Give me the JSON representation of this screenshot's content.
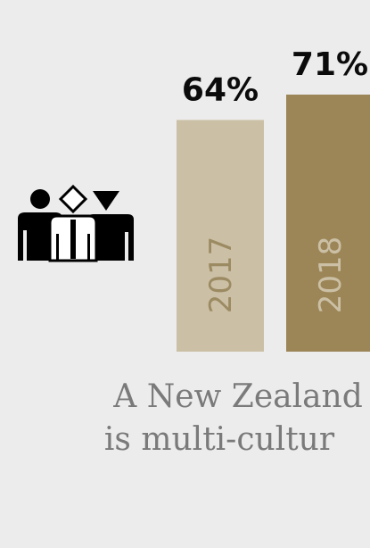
{
  "colors": {
    "background": "#ececec",
    "icon": "#000000",
    "caption_text": "#7a7a7a"
  },
  "icon": {
    "name": "diverse-people-icon"
  },
  "chart_data": {
    "type": "bar",
    "title": "",
    "xlabel": "",
    "ylabel": "",
    "ylim": [
      0,
      71
    ],
    "grid": false,
    "categories": [
      "2017",
      "2018"
    ],
    "values": [
      64,
      71
    ],
    "value_labels": [
      "64%",
      "71%"
    ],
    "bar_colors": [
      "#cbc0a5",
      "#9c8557"
    ],
    "year_label_colors": [
      "#9c8a62",
      "#cbc0a5"
    ]
  },
  "caption": {
    "line1": "A New Zealand t",
    "line2": "is multi-cultur"
  }
}
